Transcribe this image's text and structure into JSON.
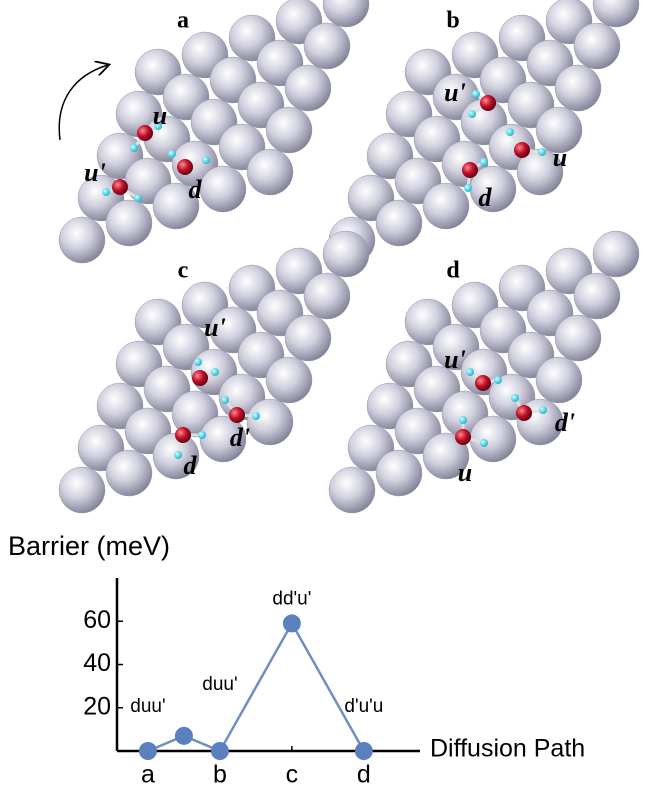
{
  "panels": [
    {
      "label": "a",
      "atoms": [
        "u",
        "u'",
        "d"
      ]
    },
    {
      "label": "b",
      "atoms": [
        "u'",
        "u",
        "d"
      ]
    },
    {
      "label": "c",
      "atoms": [
        "u'",
        "d'",
        "d"
      ]
    },
    {
      "label": "d",
      "atoms": [
        "u'",
        "d'",
        "u"
      ]
    }
  ],
  "chart_data": {
    "type": "line",
    "y_label": "Barrier (meV)",
    "x_label": "Diffusion Path",
    "x": [
      0,
      0.5,
      1,
      2,
      3
    ],
    "values": [
      0,
      7,
      0,
      59,
      0
    ],
    "point_labels": [
      "duu'",
      null,
      "duu'",
      "dd'u'",
      "d'u'u"
    ],
    "color": "#6f8fc3",
    "marker_color": "#5b80bf",
    "xlim": [
      -0.43,
      3.78
    ],
    "ylim": [
      0,
      80
    ],
    "xticks": [
      {
        "value": 0,
        "label": "a"
      },
      {
        "value": 1,
        "label": "b"
      },
      {
        "value": 2,
        "label": "c"
      },
      {
        "value": 3,
        "label": "d"
      }
    ],
    "yticks": [
      20,
      40,
      60
    ]
  }
}
